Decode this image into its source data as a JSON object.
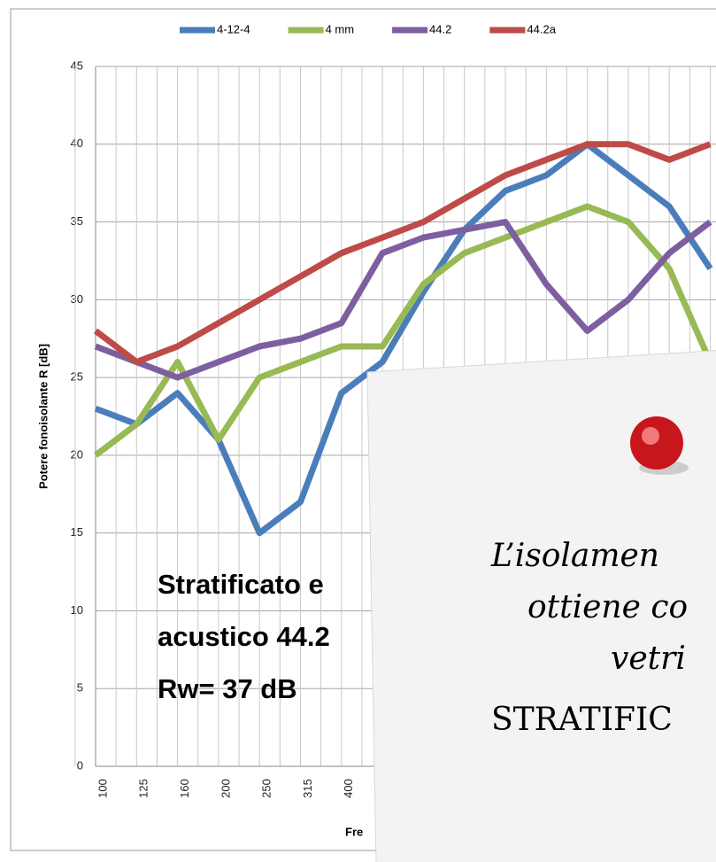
{
  "chart_data": {
    "type": "line",
    "categories": [
      "100",
      "125",
      "160",
      "200",
      "250",
      "315",
      "400",
      null,
      null,
      null,
      null,
      null,
      null,
      null,
      null,
      null
    ],
    "series": [
      {
        "name": "4-12-4",
        "color": "#4a7ebb",
        "values": [
          23,
          22,
          24,
          21,
          15,
          17,
          24,
          26,
          30.5,
          34.5,
          37,
          38,
          40,
          38,
          36,
          32
        ]
      },
      {
        "name": "4 mm",
        "color": "#98b954",
        "values": [
          20,
          22,
          26,
          21,
          25,
          26,
          27,
          27,
          31,
          33,
          34,
          35,
          36,
          35,
          32,
          26
        ]
      },
      {
        "name": "44.2",
        "color": "#7d5fa0",
        "values": [
          27,
          26,
          25,
          26,
          27,
          27.5,
          28.5,
          33,
          34,
          34.5,
          35,
          31,
          28,
          30,
          33,
          35
        ]
      },
      {
        "name": "44.2a",
        "color": "#be4b48",
        "values": [
          28,
          26,
          27,
          28.5,
          30,
          31.5,
          33,
          34,
          35,
          36.5,
          38,
          39,
          40,
          40,
          39,
          40
        ]
      }
    ],
    "ylabel": "Potere fonoisolante R [dB]",
    "xlabel": "Fre",
    "ylim": [
      0,
      45
    ],
    "yticks": [
      0,
      5,
      10,
      15,
      20,
      25,
      30,
      35,
      40,
      45
    ],
    "grid": true,
    "legend": "top",
    "annotation": [
      "Stratificato e",
      "acustico 44.2",
      "Rw= 37 dB"
    ]
  },
  "note": {
    "lines": [
      "L’isolamen",
      "ottiene co",
      "vetri",
      "STRATIFIC"
    ]
  }
}
